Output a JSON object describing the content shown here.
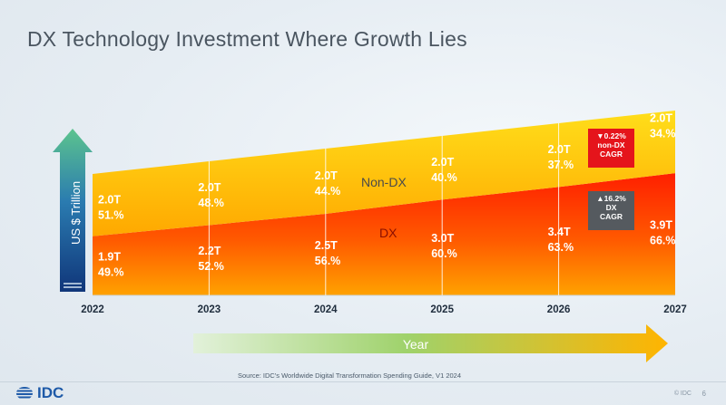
{
  "page": {
    "title": "DX Technology Investment Where Growth Lies",
    "source": "Source: IDC's Worldwide Digital Transformation Spending Guide, V1 2024",
    "logo": "IDC",
    "footer_right": "© IDC",
    "page_number": "6"
  },
  "colors": {
    "non_dx_band": "#ffc200",
    "dx_band": "#ff2a00",
    "y_arrow_top": "#5cc48e",
    "y_arrow_bottom": "#10367a",
    "x_arrow_start": "#dff0d5",
    "x_arrow_end": "#ffb400",
    "badge_red": "#e5141b",
    "badge_grey": "#555a5f"
  },
  "chart_data": {
    "type": "area",
    "stacked": true,
    "title": "DX Technology Investment Where Growth Lies",
    "x": [
      "2022",
      "2023",
      "2024",
      "2025",
      "2026",
      "2027"
    ],
    "xlabel": "Year",
    "ylabel": "US $ Trillion",
    "series": [
      {
        "name": "DX",
        "values": [
          1.9,
          2.2,
          2.5,
          3.0,
          3.4,
          3.9
        ],
        "value_labels": [
          "1.9T",
          "2.2T",
          "2.5T",
          "3.0T",
          "3.4T",
          "3.9T"
        ],
        "share_labels": [
          "49.%",
          "52.%",
          "56.%",
          "60.%",
          "63.%",
          "66.%"
        ]
      },
      {
        "name": "Non-DX",
        "values": [
          2.0,
          2.0,
          2.0,
          2.0,
          2.0,
          2.0
        ],
        "value_labels": [
          "2.0T",
          "2.0T",
          "2.0T",
          "2.0T",
          "2.0T",
          "2.0T"
        ],
        "share_labels": [
          "51.%",
          "48.%",
          "44.%",
          "40.%",
          "37.%",
          "34.%"
        ]
      }
    ],
    "annotations": [
      {
        "arrow": "▼",
        "value": "0.22%",
        "line2": "non-DX",
        "line3": "CAGR"
      },
      {
        "arrow": "▲",
        "value": "16.2%",
        "line2": "DX",
        "line3": "CAGR"
      }
    ]
  }
}
